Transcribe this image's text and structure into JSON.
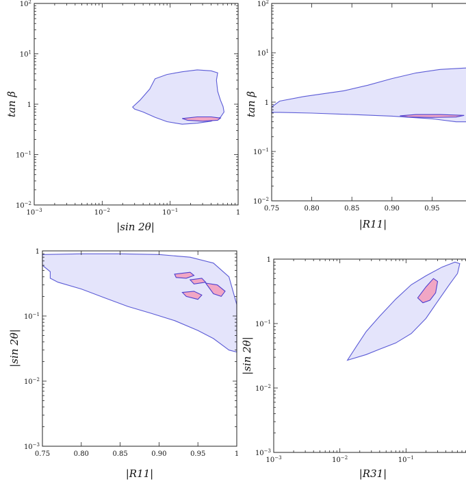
{
  "chart_data": [
    {
      "type": "area",
      "xlabel": "|sin 2θ|",
      "ylabel": "tan β",
      "xscale": "log",
      "yscale": "log",
      "xlim": [
        0.001,
        1
      ],
      "ylim": [
        0.01,
        100
      ],
      "xticks": [
        {
          "v": 0.001,
          "base": "10",
          "exp": "−3"
        },
        {
          "v": 0.01,
          "base": "10",
          "exp": "−2"
        },
        {
          "v": 0.1,
          "base": "10",
          "exp": "−1"
        },
        {
          "v": 1,
          "base": "1",
          "exp": ""
        }
      ],
      "yticks": [
        {
          "v": 0.01,
          "base": "10",
          "exp": "−2"
        },
        {
          "v": 0.1,
          "base": "10",
          "exp": "−1"
        },
        {
          "v": 1,
          "base": "1",
          "exp": ""
        },
        {
          "v": 10,
          "base": "10",
          "exp": "1"
        },
        {
          "v": 100,
          "base": "10",
          "exp": "2"
        }
      ],
      "regions": [
        {
          "role": "outer",
          "points": [
            [
              0.028,
              0.88
            ],
            [
              0.036,
              1.2
            ],
            [
              0.05,
              2.0
            ],
            [
              0.06,
              3.2
            ],
            [
              0.09,
              3.9
            ],
            [
              0.15,
              4.4
            ],
            [
              0.25,
              4.8
            ],
            [
              0.4,
              4.6
            ],
            [
              0.5,
              4.2
            ],
            [
              0.48,
              3.0
            ],
            [
              0.5,
              1.8
            ],
            [
              0.55,
              1.2
            ],
            [
              0.6,
              0.9
            ],
            [
              0.62,
              0.7
            ],
            [
              0.55,
              0.55
            ],
            [
              0.4,
              0.46
            ],
            [
              0.25,
              0.42
            ],
            [
              0.15,
              0.4
            ],
            [
              0.09,
              0.45
            ],
            [
              0.06,
              0.55
            ],
            [
              0.04,
              0.7
            ],
            [
              0.03,
              0.8
            ],
            [
              0.028,
              0.88
            ]
          ]
        },
        {
          "role": "inner",
          "points": [
            [
              0.15,
              0.52
            ],
            [
              0.25,
              0.56
            ],
            [
              0.4,
              0.56
            ],
            [
              0.55,
              0.53
            ],
            [
              0.5,
              0.48
            ],
            [
              0.3,
              0.46
            ],
            [
              0.18,
              0.48
            ],
            [
              0.15,
              0.52
            ]
          ]
        }
      ]
    },
    {
      "type": "area",
      "xlabel": "|R11|",
      "ylabel": "tan β",
      "xscale": "linear",
      "yscale": "log",
      "xlim": [
        0.75,
        1
      ],
      "ylim": [
        0.01,
        100
      ],
      "xticks": [
        {
          "v": 0.75,
          "base": "0.75",
          "exp": ""
        },
        {
          "v": 0.8,
          "base": "0.80",
          "exp": ""
        },
        {
          "v": 0.85,
          "base": "0.85",
          "exp": ""
        },
        {
          "v": 0.9,
          "base": "0.90",
          "exp": ""
        },
        {
          "v": 0.95,
          "base": "0.95",
          "exp": ""
        }
      ],
      "yticks": [
        {
          "v": 0.01,
          "base": "10",
          "exp": "−2"
        },
        {
          "v": 0.1,
          "base": "10",
          "exp": "−1"
        },
        {
          "v": 1,
          "base": "1",
          "exp": ""
        },
        {
          "v": 10,
          "base": "10",
          "exp": "1"
        },
        {
          "v": 100,
          "base": "10",
          "exp": "2"
        }
      ],
      "regions": [
        {
          "role": "outer",
          "points": [
            [
              0.75,
              0.8
            ],
            [
              0.76,
              1.05
            ],
            [
              0.79,
              1.3
            ],
            [
              0.84,
              1.7
            ],
            [
              0.87,
              2.2
            ],
            [
              0.9,
              3.0
            ],
            [
              0.93,
              3.9
            ],
            [
              0.96,
              4.6
            ],
            [
              0.99,
              4.9
            ],
            [
              1.0,
              5.0
            ],
            [
              1.0,
              0.4
            ],
            [
              0.98,
              0.4
            ],
            [
              0.95,
              0.46
            ],
            [
              0.9,
              0.52
            ],
            [
              0.85,
              0.56
            ],
            [
              0.8,
              0.6
            ],
            [
              0.76,
              0.62
            ],
            [
              0.75,
              0.62
            ],
            [
              0.75,
              0.8
            ]
          ]
        },
        {
          "role": "inner",
          "points": [
            [
              0.91,
              0.53
            ],
            [
              0.93,
              0.56
            ],
            [
              0.96,
              0.56
            ],
            [
              0.99,
              0.54
            ],
            [
              0.98,
              0.5
            ],
            [
              0.95,
              0.49
            ],
            [
              0.92,
              0.5
            ],
            [
              0.91,
              0.53
            ]
          ]
        }
      ]
    },
    {
      "type": "area",
      "xlabel": "|R11|",
      "ylabel": "|sin 2θ|",
      "xscale": "linear",
      "yscale": "log",
      "xlim": [
        0.75,
        1
      ],
      "ylim": [
        0.001,
        1
      ],
      "xticks": [
        {
          "v": 0.75,
          "base": "0.75",
          "exp": ""
        },
        {
          "v": 0.8,
          "base": "0.80",
          "exp": ""
        },
        {
          "v": 0.85,
          "base": "0.85",
          "exp": ""
        },
        {
          "v": 0.9,
          "base": "0.90",
          "exp": ""
        },
        {
          "v": 0.95,
          "base": "0.95",
          "exp": ""
        },
        {
          "v": 1,
          "base": "1",
          "exp": ""
        }
      ],
      "yticks": [
        {
          "v": 0.001,
          "base": "10",
          "exp": "−3"
        },
        {
          "v": 0.01,
          "base": "10",
          "exp": "−2"
        },
        {
          "v": 0.1,
          "base": "10",
          "exp": "−1"
        },
        {
          "v": 1,
          "base": "1",
          "exp": ""
        }
      ],
      "regions": [
        {
          "role": "outer",
          "points": [
            [
              0.75,
              0.88
            ],
            [
              0.8,
              0.9
            ],
            [
              0.85,
              0.9
            ],
            [
              0.9,
              0.88
            ],
            [
              0.94,
              0.8
            ],
            [
              0.97,
              0.65
            ],
            [
              0.99,
              0.4
            ],
            [
              1.0,
              0.15
            ],
            [
              1.0,
              0.028
            ],
            [
              0.99,
              0.03
            ],
            [
              0.97,
              0.045
            ],
            [
              0.95,
              0.06
            ],
            [
              0.92,
              0.085
            ],
            [
              0.89,
              0.11
            ],
            [
              0.86,
              0.14
            ],
            [
              0.83,
              0.19
            ],
            [
              0.8,
              0.26
            ],
            [
              0.77,
              0.33
            ],
            [
              0.76,
              0.38
            ],
            [
              0.76,
              0.48
            ],
            [
              0.75,
              0.6
            ],
            [
              0.75,
              0.88
            ]
          ]
        },
        {
          "role": "inner",
          "points": [
            [
              0.92,
              0.44
            ],
            [
              0.94,
              0.47
            ],
            [
              0.945,
              0.42
            ],
            [
              0.935,
              0.38
            ],
            [
              0.922,
              0.39
            ],
            [
              0.92,
              0.44
            ]
          ]
        },
        {
          "role": "inner",
          "points": [
            [
              0.94,
              0.36
            ],
            [
              0.955,
              0.38
            ],
            [
              0.96,
              0.33
            ],
            [
              0.945,
              0.31
            ],
            [
              0.94,
              0.36
            ]
          ]
        },
        {
          "role": "inner",
          "points": [
            [
              0.96,
              0.32
            ],
            [
              0.975,
              0.3
            ],
            [
              0.985,
              0.24
            ],
            [
              0.98,
              0.2
            ],
            [
              0.97,
              0.22
            ],
            [
              0.96,
              0.32
            ]
          ]
        },
        {
          "role": "inner",
          "points": [
            [
              0.93,
              0.23
            ],
            [
              0.945,
              0.24
            ],
            [
              0.955,
              0.21
            ],
            [
              0.95,
              0.18
            ],
            [
              0.935,
              0.2
            ],
            [
              0.93,
              0.23
            ]
          ]
        }
      ]
    },
    {
      "type": "area",
      "xlabel": "|R31|",
      "ylabel": "|sin 2θ|",
      "xscale": "log",
      "yscale": "log",
      "xlim": [
        0.001,
        1
      ],
      "ylim": [
        0.001,
        1
      ],
      "xticks": [
        {
          "v": 0.001,
          "base": "10",
          "exp": "−3"
        },
        {
          "v": 0.01,
          "base": "10",
          "exp": "−2"
        },
        {
          "v": 0.1,
          "base": "10",
          "exp": "−1"
        }
      ],
      "yticks": [
        {
          "v": 0.001,
          "base": "10",
          "exp": "−3"
        },
        {
          "v": 0.01,
          "base": "10",
          "exp": "−2"
        },
        {
          "v": 0.1,
          "base": "10",
          "exp": "−1"
        },
        {
          "v": 1,
          "base": "1",
          "exp": ""
        }
      ],
      "regions": [
        {
          "role": "outer",
          "points": [
            [
              0.013,
              0.027
            ],
            [
              0.018,
              0.045
            ],
            [
              0.025,
              0.075
            ],
            [
              0.04,
              0.13
            ],
            [
              0.07,
              0.24
            ],
            [
              0.12,
              0.4
            ],
            [
              0.2,
              0.55
            ],
            [
              0.35,
              0.75
            ],
            [
              0.55,
              0.9
            ],
            [
              0.65,
              0.85
            ],
            [
              0.6,
              0.6
            ],
            [
              0.45,
              0.4
            ],
            [
              0.3,
              0.22
            ],
            [
              0.2,
              0.12
            ],
            [
              0.12,
              0.07
            ],
            [
              0.07,
              0.05
            ],
            [
              0.04,
              0.04
            ],
            [
              0.025,
              0.033
            ],
            [
              0.013,
              0.027
            ]
          ]
        },
        {
          "role": "inner",
          "points": [
            [
              0.15,
              0.25
            ],
            [
              0.2,
              0.37
            ],
            [
              0.26,
              0.5
            ],
            [
              0.3,
              0.45
            ],
            [
              0.28,
              0.3
            ],
            [
              0.23,
              0.23
            ],
            [
              0.18,
              0.21
            ],
            [
              0.15,
              0.25
            ]
          ]
        }
      ]
    }
  ]
}
